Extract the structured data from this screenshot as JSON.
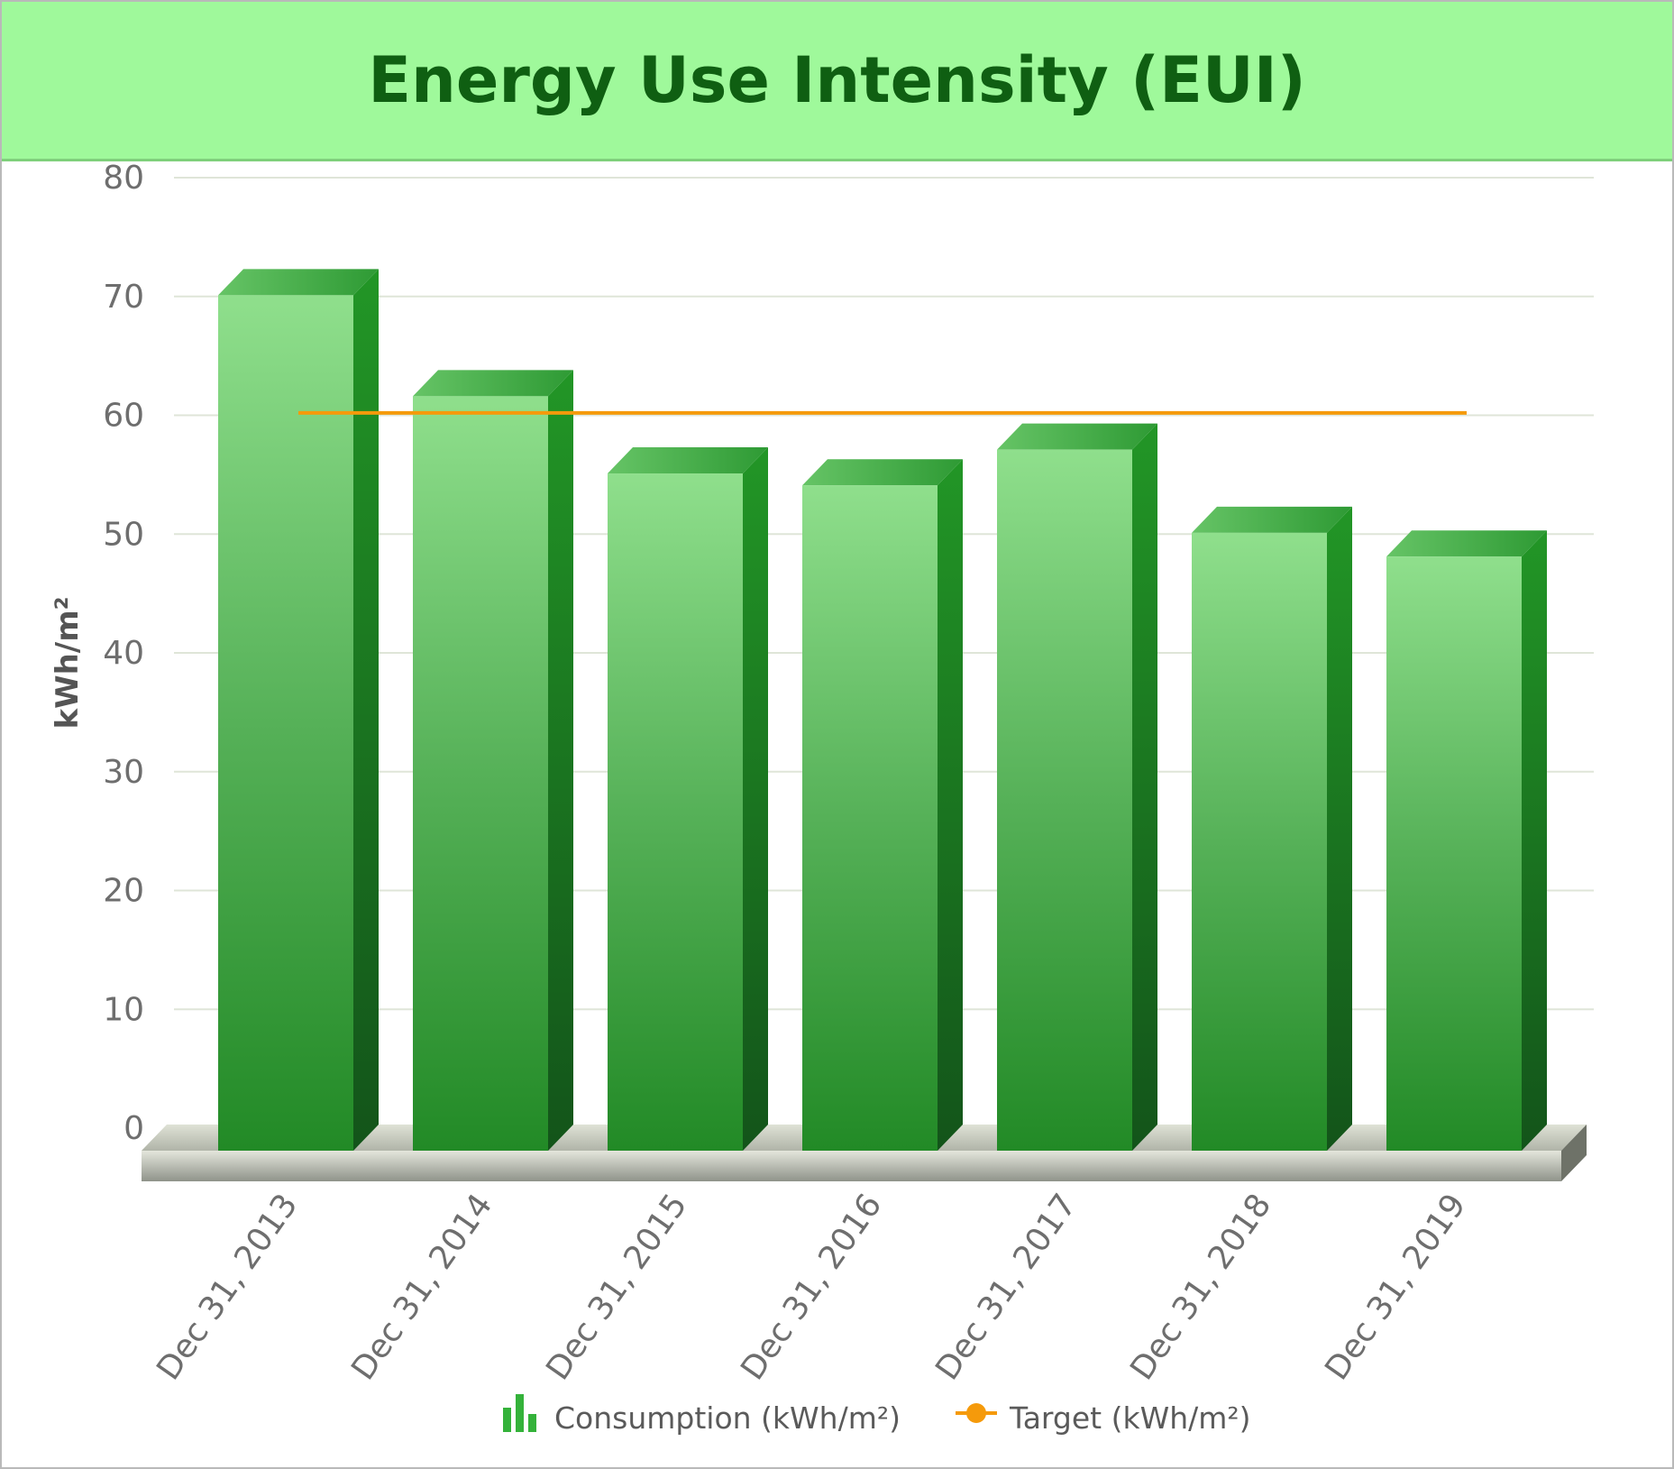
{
  "chart_data": {
    "type": "bar",
    "title": "Energy Use Intensity (EUI)",
    "ylabel": "kWh/m²",
    "xlabel": "",
    "ylim": [
      0,
      80
    ],
    "yticks": [
      0,
      10,
      20,
      30,
      40,
      50,
      60,
      70,
      80
    ],
    "grid": true,
    "legend_placement": "bottom",
    "categories": [
      "Dec 31, 2013",
      "Dec 31, 2014",
      "Dec 31, 2015",
      "Dec 31, 2016",
      "Dec 31, 2017",
      "Dec 31, 2018",
      "Dec 31, 2019"
    ],
    "series": [
      {
        "name": "Consumption (kWh/m²)",
        "type": "bar",
        "color": "#2e9a34",
        "values": [
          72,
          63.5,
          57,
          56,
          59,
          52,
          50
        ]
      },
      {
        "name": "Target (kWh/m²)",
        "type": "line",
        "color": "#f59a0b",
        "values": [
          61,
          61,
          61,
          61,
          61,
          61,
          61
        ]
      }
    ]
  }
}
